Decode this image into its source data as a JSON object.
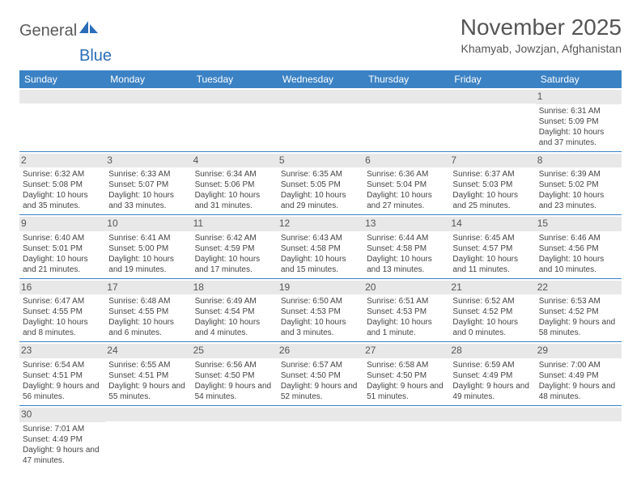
{
  "logo": {
    "text1": "General",
    "text2": "Blue"
  },
  "title": "November 2025",
  "location": "Khamyab, Jowzjan, Afghanistan",
  "colors": {
    "header_bg": "#3b82c4",
    "header_text": "#ffffff",
    "daynum_bg": "#e8e8e8",
    "border": "#3b82c4",
    "text": "#444444",
    "title_color": "#555555"
  },
  "weekdays": [
    "Sunday",
    "Monday",
    "Tuesday",
    "Wednesday",
    "Thursday",
    "Friday",
    "Saturday"
  ],
  "weeks": [
    [
      null,
      null,
      null,
      null,
      null,
      null,
      {
        "n": "1",
        "sunrise": "6:31 AM",
        "sunset": "5:09 PM",
        "daylight": "10 hours and 37 minutes."
      }
    ],
    [
      {
        "n": "2",
        "sunrise": "6:32 AM",
        "sunset": "5:08 PM",
        "daylight": "10 hours and 35 minutes."
      },
      {
        "n": "3",
        "sunrise": "6:33 AM",
        "sunset": "5:07 PM",
        "daylight": "10 hours and 33 minutes."
      },
      {
        "n": "4",
        "sunrise": "6:34 AM",
        "sunset": "5:06 PM",
        "daylight": "10 hours and 31 minutes."
      },
      {
        "n": "5",
        "sunrise": "6:35 AM",
        "sunset": "5:05 PM",
        "daylight": "10 hours and 29 minutes."
      },
      {
        "n": "6",
        "sunrise": "6:36 AM",
        "sunset": "5:04 PM",
        "daylight": "10 hours and 27 minutes."
      },
      {
        "n": "7",
        "sunrise": "6:37 AM",
        "sunset": "5:03 PM",
        "daylight": "10 hours and 25 minutes."
      },
      {
        "n": "8",
        "sunrise": "6:39 AM",
        "sunset": "5:02 PM",
        "daylight": "10 hours and 23 minutes."
      }
    ],
    [
      {
        "n": "9",
        "sunrise": "6:40 AM",
        "sunset": "5:01 PM",
        "daylight": "10 hours and 21 minutes."
      },
      {
        "n": "10",
        "sunrise": "6:41 AM",
        "sunset": "5:00 PM",
        "daylight": "10 hours and 19 minutes."
      },
      {
        "n": "11",
        "sunrise": "6:42 AM",
        "sunset": "4:59 PM",
        "daylight": "10 hours and 17 minutes."
      },
      {
        "n": "12",
        "sunrise": "6:43 AM",
        "sunset": "4:58 PM",
        "daylight": "10 hours and 15 minutes."
      },
      {
        "n": "13",
        "sunrise": "6:44 AM",
        "sunset": "4:58 PM",
        "daylight": "10 hours and 13 minutes."
      },
      {
        "n": "14",
        "sunrise": "6:45 AM",
        "sunset": "4:57 PM",
        "daylight": "10 hours and 11 minutes."
      },
      {
        "n": "15",
        "sunrise": "6:46 AM",
        "sunset": "4:56 PM",
        "daylight": "10 hours and 10 minutes."
      }
    ],
    [
      {
        "n": "16",
        "sunrise": "6:47 AM",
        "sunset": "4:55 PM",
        "daylight": "10 hours and 8 minutes."
      },
      {
        "n": "17",
        "sunrise": "6:48 AM",
        "sunset": "4:55 PM",
        "daylight": "10 hours and 6 minutes."
      },
      {
        "n": "18",
        "sunrise": "6:49 AM",
        "sunset": "4:54 PM",
        "daylight": "10 hours and 4 minutes."
      },
      {
        "n": "19",
        "sunrise": "6:50 AM",
        "sunset": "4:53 PM",
        "daylight": "10 hours and 3 minutes."
      },
      {
        "n": "20",
        "sunrise": "6:51 AM",
        "sunset": "4:53 PM",
        "daylight": "10 hours and 1 minute."
      },
      {
        "n": "21",
        "sunrise": "6:52 AM",
        "sunset": "4:52 PM",
        "daylight": "10 hours and 0 minutes."
      },
      {
        "n": "22",
        "sunrise": "6:53 AM",
        "sunset": "4:52 PM",
        "daylight": "9 hours and 58 minutes."
      }
    ],
    [
      {
        "n": "23",
        "sunrise": "6:54 AM",
        "sunset": "4:51 PM",
        "daylight": "9 hours and 56 minutes."
      },
      {
        "n": "24",
        "sunrise": "6:55 AM",
        "sunset": "4:51 PM",
        "daylight": "9 hours and 55 minutes."
      },
      {
        "n": "25",
        "sunrise": "6:56 AM",
        "sunset": "4:50 PM",
        "daylight": "9 hours and 54 minutes."
      },
      {
        "n": "26",
        "sunrise": "6:57 AM",
        "sunset": "4:50 PM",
        "daylight": "9 hours and 52 minutes."
      },
      {
        "n": "27",
        "sunrise": "6:58 AM",
        "sunset": "4:50 PM",
        "daylight": "9 hours and 51 minutes."
      },
      {
        "n": "28",
        "sunrise": "6:59 AM",
        "sunset": "4:49 PM",
        "daylight": "9 hours and 49 minutes."
      },
      {
        "n": "29",
        "sunrise": "7:00 AM",
        "sunset": "4:49 PM",
        "daylight": "9 hours and 48 minutes."
      }
    ],
    [
      {
        "n": "30",
        "sunrise": "7:01 AM",
        "sunset": "4:49 PM",
        "daylight": "9 hours and 47 minutes."
      },
      null,
      null,
      null,
      null,
      null,
      null
    ]
  ],
  "labels": {
    "sunrise": "Sunrise:",
    "sunset": "Sunset:",
    "daylight": "Daylight:"
  }
}
